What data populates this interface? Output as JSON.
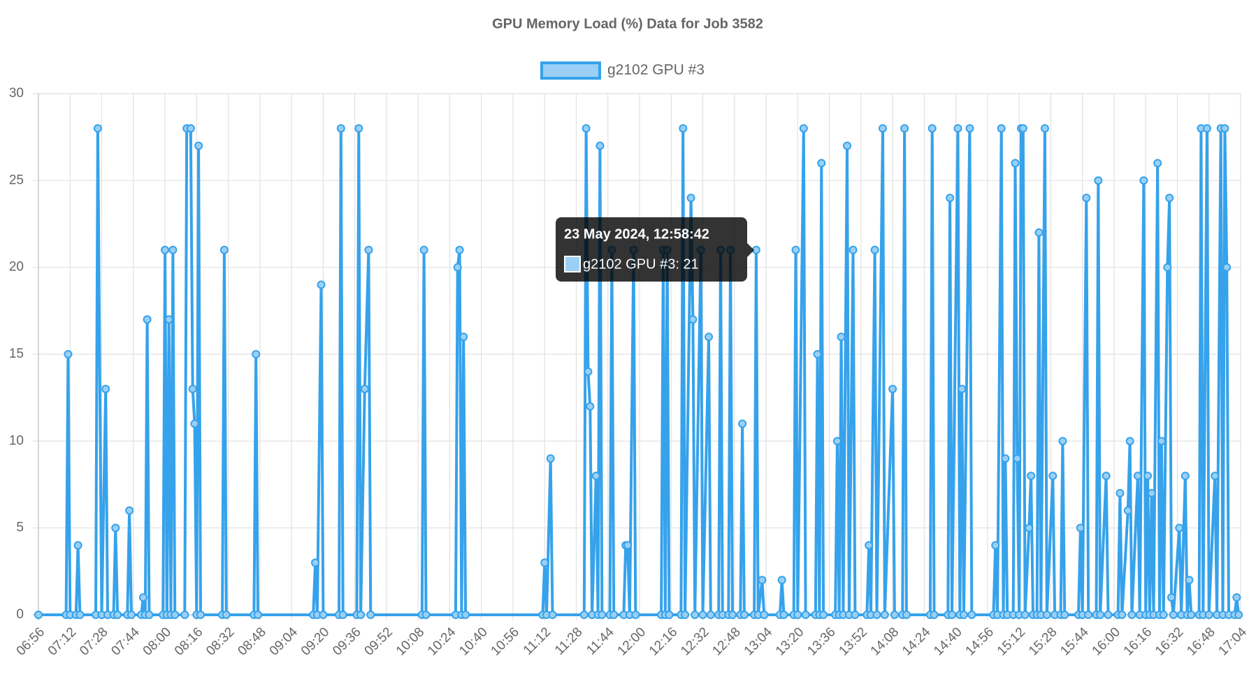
{
  "chart_data": {
    "type": "line",
    "title": "GPU Memory Load (%) Data for Job 3582",
    "xlim": [
      "06:56",
      "17:04"
    ],
    "xticks": [
      "06:56",
      "07:12",
      "07:28",
      "07:44",
      "08:00",
      "08:16",
      "08:32",
      "08:48",
      "09:04",
      "09:20",
      "09:36",
      "09:52",
      "10:08",
      "10:24",
      "10:40",
      "10:56",
      "11:12",
      "11:28",
      "11:44",
      "12:00",
      "12:16",
      "12:32",
      "12:48",
      "13:04",
      "13:20",
      "13:36",
      "13:52",
      "14:08",
      "14:24",
      "14:40",
      "14:56",
      "15:12",
      "15:28",
      "15:44",
      "16:00",
      "16:16",
      "16:32",
      "16:48",
      "17:04"
    ],
    "ylim": [
      0,
      30
    ],
    "yticks": [
      0,
      5,
      10,
      15,
      20,
      25,
      30
    ],
    "grid": true,
    "legend": "top",
    "x": [
      "06:56",
      "07:10",
      "07:11",
      "07:12",
      "07:15",
      "07:16",
      "07:17",
      "07:25",
      "07:26",
      "07:28",
      "07:30",
      "07:31",
      "07:34",
      "07:35",
      "07:36",
      "07:41",
      "07:42",
      "07:43",
      "07:48",
      "07:49",
      "07:50",
      "07:51",
      "07:52",
      "07:59",
      "08:00",
      "08:01",
      "08:02",
      "08:03",
      "08:04",
      "08:05",
      "08:10",
      "08:11",
      "08:13",
      "08:14",
      "08:15",
      "08:16",
      "08:17",
      "08:18",
      "08:29",
      "08:30",
      "08:31",
      "08:45",
      "08:46",
      "08:47",
      "09:15",
      "09:16",
      "09:17",
      "09:19",
      "09:20",
      "09:28",
      "09:29",
      "09:30",
      "09:37",
      "09:38",
      "09:39",
      "09:41",
      "09:43",
      "09:44",
      "10:10",
      "10:11",
      "10:12",
      "10:27",
      "10:28",
      "10:29",
      "10:30",
      "10:31",
      "10:32",
      "11:11",
      "11:12",
      "11:13",
      "11:15",
      "11:16",
      "11:32",
      "11:33",
      "11:34",
      "11:35",
      "11:36",
      "11:38",
      "11:39",
      "11:40",
      "11:41",
      "11:45",
      "11:46",
      "11:47",
      "11:52",
      "11:53",
      "11:54",
      "11:55",
      "11:57",
      "11:58",
      "12:11",
      "12:12",
      "12:13",
      "12:14",
      "12:15",
      "12:21",
      "12:22",
      "12:23",
      "12:26",
      "12:27",
      "12:28",
      "12:31",
      "12:32",
      "12:35",
      "12:36",
      "12:40",
      "12:41",
      "12:42",
      "12:45",
      "12:46",
      "12:47",
      "12:51",
      "12:52",
      "12:53",
      "12:58",
      "12:59",
      "13:00",
      "13:02",
      "13:03",
      "13:11",
      "13:12",
      "13:13",
      "13:18",
      "13:19",
      "13:20",
      "13:23",
      "13:24",
      "13:29",
      "13:30",
      "13:31",
      "13:32",
      "13:33",
      "13:39",
      "13:40",
      "13:41",
      "13:42",
      "13:43",
      "13:45",
      "13:46",
      "13:48",
      "13:49",
      "13:55",
      "13:56",
      "13:57",
      "13:59",
      "14:00",
      "14:03",
      "14:04",
      "14:08",
      "14:09",
      "14:13",
      "14:14",
      "14:15",
      "14:27",
      "14:28",
      "14:29",
      "14:36",
      "14:37",
      "14:38",
      "14:41",
      "14:42",
      "14:43",
      "14:44",
      "14:47",
      "14:48",
      "14:59",
      "15:00",
      "15:01",
      "15:03",
      "15:04",
      "15:05",
      "15:06",
      "15:09",
      "15:10",
      "15:11",
      "15:12",
      "15:13",
      "15:14",
      "15:15",
      "15:17",
      "15:18",
      "15:19",
      "15:21",
      "15:22",
      "15:23",
      "15:25",
      "15:26",
      "15:29",
      "15:30",
      "15:33",
      "15:34",
      "15:35",
      "15:42",
      "15:43",
      "15:44",
      "15:46",
      "15:47",
      "15:51",
      "15:52",
      "15:53",
      "15:56",
      "15:57",
      "16:02",
      "16:03",
      "16:04",
      "16:07",
      "16:08",
      "16:09",
      "16:12",
      "16:13",
      "16:15",
      "16:16",
      "16:17",
      "16:18",
      "16:19",
      "16:20",
      "16:22",
      "16:23",
      "16:24",
      "16:25",
      "16:27",
      "16:28",
      "16:29",
      "16:30",
      "16:33",
      "16:34",
      "16:36",
      "16:37",
      "16:38",
      "16:39",
      "16:43",
      "16:44",
      "16:45",
      "16:47",
      "16:48",
      "16:51",
      "16:52",
      "16:54",
      "16:55",
      "16:56",
      "16:57",
      "16:58",
      "17:01",
      "17:02",
      "17:03"
    ],
    "series": [
      {
        "name": "g2102 GPU #3",
        "color": "#36a2eb",
        "fill": "#9ad0f5",
        "values": [
          0,
          0,
          15,
          0,
          0,
          4,
          0,
          0,
          28,
          0,
          13,
          0,
          0,
          5,
          0,
          0,
          6,
          0,
          0,
          1,
          0,
          17,
          0,
          0,
          21,
          0,
          17,
          0,
          21,
          0,
          0,
          28,
          28,
          13,
          11,
          0,
          27,
          0,
          0,
          21,
          0,
          0,
          15,
          0,
          0,
          3,
          0,
          19,
          0,
          0,
          28,
          0,
          0,
          28,
          0,
          13,
          21,
          0,
          0,
          21,
          0,
          0,
          20,
          21,
          0,
          16,
          0,
          0,
          3,
          0,
          9,
          0,
          0,
          28,
          14,
          12,
          0,
          8,
          0,
          27,
          0,
          0,
          21,
          0,
          0,
          4,
          4,
          0,
          21,
          0,
          0,
          21,
          0,
          21,
          0,
          0,
          28,
          0,
          24,
          17,
          0,
          21,
          0,
          16,
          0,
          0,
          21,
          0,
          0,
          21,
          0,
          0,
          11,
          0,
          0,
          21,
          0,
          2,
          0,
          0,
          2,
          0,
          0,
          21,
          0,
          28,
          0,
          0,
          15,
          0,
          26,
          0,
          0,
          10,
          0,
          16,
          0,
          27,
          0,
          21,
          0,
          0,
          4,
          0,
          21,
          0,
          28,
          0,
          13,
          0,
          0,
          28,
          0,
          0,
          28,
          0,
          0,
          24,
          0,
          28,
          0,
          13,
          0,
          28,
          0,
          0,
          4,
          0,
          28,
          0,
          9,
          0,
          0,
          26,
          9,
          0,
          28,
          28,
          0,
          5,
          8,
          0,
          0,
          22,
          0,
          28,
          0,
          8,
          0,
          0,
          10,
          0,
          0,
          5,
          0,
          24,
          0,
          0,
          25,
          0,
          8,
          0,
          0,
          7,
          0,
          6,
          10,
          0,
          8,
          0,
          25,
          0,
          8,
          0,
          7,
          0,
          26,
          0,
          10,
          0,
          20,
          24,
          1,
          0,
          5,
          0,
          8,
          0,
          2,
          0,
          0,
          28,
          0,
          28,
          0,
          8,
          0,
          28,
          0,
          28,
          20,
          0,
          0,
          1,
          0
        ]
      }
    ],
    "tooltip": {
      "title": "23 May 2024, 12:58:42",
      "label": "g2102 GPU #3: 21"
    }
  }
}
